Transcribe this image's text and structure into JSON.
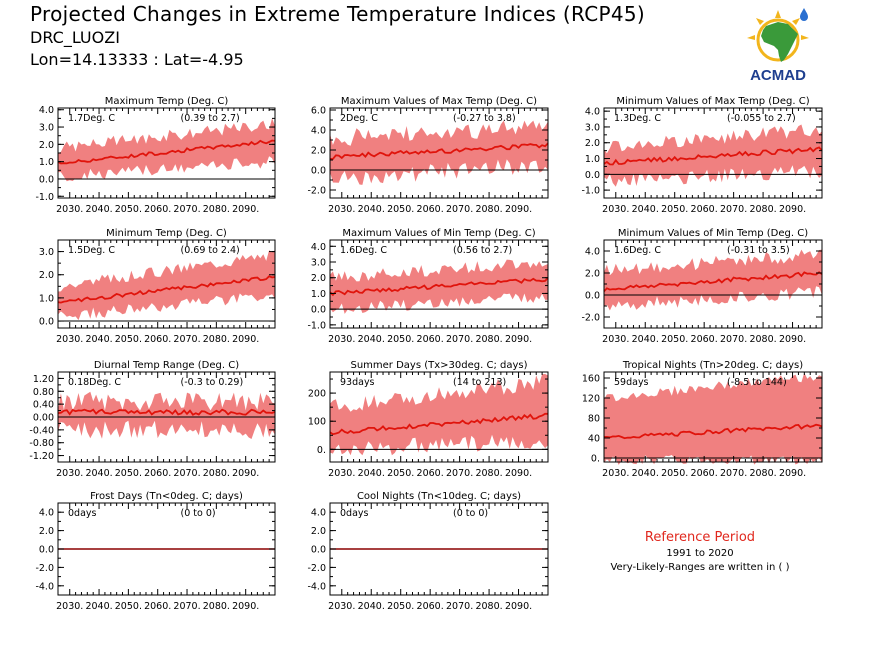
{
  "header": {
    "title": "Projected Changes in Extreme Temperature Indices (RCP45)",
    "region": "DRC_LUOZI",
    "coords": "Lon=14.13333 : Lat=-4.95"
  },
  "logo": {
    "text": "ACMAD",
    "icon": "africa-map-logo-icon",
    "colors": {
      "africa": "#3a9a3a",
      "sun": "#f2b51c",
      "text": "#1f3f8f",
      "drop": "#2a6fd0"
    }
  },
  "reference": {
    "title": "Reference Period",
    "years": "1991 to 2020",
    "note": "Very-Likely-Ranges are written in ( )"
  },
  "colors": {
    "band": "#f08080",
    "median": "#e0140c",
    "zero_line": "#000000",
    "frost_line": "#8b0000"
  },
  "chart_data": [
    {
      "id": "txmean",
      "type": "area",
      "title": "Maximum Temp (Deg. C)",
      "change": "1.7Deg. C",
      "range": "(0.39 to 2.7)",
      "x_start": 2026,
      "x_end": 2100,
      "xticks": [
        "2030.",
        "2040.",
        "2050.",
        "2060.",
        "2070.",
        "2080.",
        "2090."
      ],
      "ylim": [
        -1.1,
        4.1
      ],
      "yticks": [
        "4.0",
        "3.0",
        "2.0",
        "1.0",
        "0.0",
        "-1.0"
      ],
      "ytick_values": [
        4,
        3,
        2,
        1,
        0,
        -1
      ],
      "median_start": 0.9,
      "median_end": 2.2,
      "low_start": 0.1,
      "low_end": 1.0,
      "high_start": 1.8,
      "high_end": 3.2,
      "noise": 0.35,
      "noise_median": 0.1
    },
    {
      "id": "txx",
      "type": "area",
      "title": "Maximum Values of Max Temp (Deg. C)",
      "change": "2Deg. C",
      "range": "(-0.27 to 3.8)",
      "x_start": 2026,
      "x_end": 2100,
      "xticks": [
        "2030.",
        "2040.",
        "2050.",
        "2060.",
        "2070.",
        "2080.",
        "2090."
      ],
      "ylim": [
        -2.8,
        6.2
      ],
      "yticks": [
        "6.0",
        "4.0",
        "2.0",
        "0.0",
        "-2.0"
      ],
      "ytick_values": [
        6,
        4,
        2,
        0,
        -2
      ],
      "median_start": 1.3,
      "median_end": 2.5,
      "low_start": -0.8,
      "low_end": 0.5,
      "high_start": 3.2,
      "high_end": 4.3,
      "noise": 0.9,
      "noise_median": 0.25
    },
    {
      "id": "txn",
      "type": "area",
      "title": "Minimum Values of Max Temp (Deg. C)",
      "change": "1.3Deg. C",
      "range": "(-0.055 to 2.7)",
      "x_start": 2026,
      "x_end": 2100,
      "xticks": [
        "2030.",
        "2040.",
        "2050.",
        "2060.",
        "2070.",
        "2080.",
        "2090."
      ],
      "ylim": [
        -1.5,
        4.2
      ],
      "yticks": [
        "4.0",
        "3.0",
        "2.0",
        "1.0",
        "0.0",
        "-1.0"
      ],
      "ytick_values": [
        4,
        3,
        2,
        1,
        0,
        -1
      ],
      "median_start": 0.7,
      "median_end": 1.6,
      "low_start": -0.4,
      "low_end": 0.2,
      "high_start": 1.7,
      "high_end": 2.9,
      "noise": 0.45,
      "noise_median": 0.15
    },
    {
      "id": "tnmean",
      "type": "area",
      "title": "Minimum Temp (Deg. C)",
      "change": "1.5Deg. C",
      "range": "(0.69 to 2.4)",
      "x_start": 2026,
      "x_end": 2100,
      "xticks": [
        "2030.",
        "2040.",
        "2050.",
        "2060.",
        "2070.",
        "2080.",
        "2090."
      ],
      "ylim": [
        -0.3,
        3.5
      ],
      "yticks": [
        "3.0",
        "2.0",
        "1.0",
        "0.0"
      ],
      "ytick_values": [
        3,
        2,
        1,
        0
      ],
      "median_start": 0.8,
      "median_end": 1.9,
      "low_start": 0.2,
      "low_end": 1.1,
      "high_start": 1.5,
      "high_end": 2.9,
      "noise": 0.25,
      "noise_median": 0.08
    },
    {
      "id": "tnx",
      "type": "area",
      "title": "Maximum Values of Min Temp (Deg. C)",
      "change": "1.6Deg. C",
      "range": "(0.56 to 2.7)",
      "x_start": 2026,
      "x_end": 2100,
      "xticks": [
        "2030.",
        "2040.",
        "2050.",
        "2060.",
        "2070.",
        "2080.",
        "2090."
      ],
      "ylim": [
        -1.2,
        4.4
      ],
      "yticks": [
        "4.0",
        "3.0",
        "2.0",
        "1.0",
        "0.0",
        "-1.0"
      ],
      "ytick_values": [
        4,
        3,
        2,
        1,
        0,
        -1
      ],
      "median_start": 1.0,
      "median_end": 1.9,
      "low_start": 0.0,
      "low_end": 0.8,
      "high_start": 2.0,
      "high_end": 3.0,
      "noise": 0.4,
      "noise_median": 0.12
    },
    {
      "id": "tnn",
      "type": "area",
      "title": "Minimum Values of Min Temp (Deg. C)",
      "change": "1.6Deg. C",
      "range": "(-0.31 to 3.5)",
      "x_start": 2026,
      "x_end": 2100,
      "xticks": [
        "2030.",
        "2040.",
        "2050.",
        "2060.",
        "2070.",
        "2080.",
        "2090."
      ],
      "ylim": [
        -3.0,
        5.0
      ],
      "yticks": [
        "4.0",
        "2.0",
        "0.0",
        "-2.0"
      ],
      "ytick_values": [
        4,
        2,
        0,
        -2
      ],
      "median_start": 0.5,
      "median_end": 2.0,
      "low_start": -1.0,
      "low_end": 0.3,
      "high_start": 2.2,
      "high_end": 3.7,
      "noise": 0.6,
      "noise_median": 0.2
    },
    {
      "id": "dtr",
      "type": "area",
      "title": "Diurnal Temp Range (Deg. C)",
      "change": "0.18Deg. C",
      "range": "(-0.3 to 0.29)",
      "x_start": 2026,
      "x_end": 2100,
      "xticks": [
        "2030.",
        "2040.",
        "2050.",
        "2060.",
        "2070.",
        "2080.",
        "2090."
      ],
      "ylim": [
        -1.4,
        1.4
      ],
      "yticks": [
        "1.20",
        "0.80",
        "0.40",
        "0.00",
        "-0.40",
        "-0.80",
        "-1.20"
      ],
      "ytick_values": [
        1.2,
        0.8,
        0.4,
        0,
        -0.4,
        -0.8,
        -1.2
      ],
      "median_start": 0.15,
      "median_end": 0.15,
      "low_start": -0.4,
      "low_end": -0.4,
      "high_start": 0.5,
      "high_end": 0.5,
      "noise": 0.3,
      "noise_median": 0.08
    },
    {
      "id": "su",
      "type": "area",
      "title": "Summer Days (Tx>30deg. C; days)",
      "change": "93days",
      "range": "(14 to 213)",
      "x_start": 2026,
      "x_end": 2100,
      "xticks": [
        "2030.",
        "2040.",
        "2050.",
        "2060.",
        "2070.",
        "2080.",
        "2090."
      ],
      "ylim": [
        -45,
        275
      ],
      "yticks": [
        "200",
        "100",
        "0."
      ],
      "ytick_values": [
        200,
        100,
        0
      ],
      "median_start": 60,
      "median_end": 120,
      "low_start": 0,
      "low_end": 30,
      "high_start": 150,
      "high_end": 240,
      "noise": 30,
      "noise_median": 8
    },
    {
      "id": "tr",
      "type": "area",
      "title": "Tropical Nights (Tn>20deg. C; days)",
      "change": "59days",
      "range": "(-8.5 to 144)",
      "x_start": 2026,
      "x_end": 2100,
      "xticks": [
        "2030.",
        "2040.",
        "2050.",
        "2060.",
        "2070.",
        "2080.",
        "2090."
      ],
      "ylim": [
        -8,
        172
      ],
      "yticks": [
        "160",
        "120",
        "80",
        "40",
        "0."
      ],
      "ytick_values": [
        160,
        120,
        80,
        40,
        0
      ],
      "median_start": 40,
      "median_end": 65,
      "low_start": -4,
      "low_end": -4,
      "high_start": 120,
      "high_end": 165,
      "noise": 10,
      "noise_median": 4
    },
    {
      "id": "fd",
      "type": "area",
      "title": "Frost Days (Tn<0deg. C; days)",
      "change": "0days",
      "range": "(0 to 0)",
      "x_start": 2026,
      "x_end": 2100,
      "xticks": [
        "2030.",
        "2040.",
        "2050.",
        "2060.",
        "2070.",
        "2080.",
        "2090."
      ],
      "ylim": [
        -5,
        5
      ],
      "yticks": [
        "4.0",
        "2.0",
        "0.0",
        "-2.0",
        "-4.0"
      ],
      "ytick_values": [
        4,
        2,
        0,
        -2,
        -4
      ],
      "flat": true,
      "median_start": 0,
      "median_end": 0,
      "low_start": 0,
      "low_end": 0,
      "high_start": 0,
      "high_end": 0,
      "noise": 0,
      "noise_median": 0
    },
    {
      "id": "cn",
      "type": "area",
      "title": "Cool Nights (Tn<10deg. C; days)",
      "change": "0days",
      "range": "(0 to 0)",
      "x_start": 2026,
      "x_end": 2100,
      "xticks": [
        "2030.",
        "2040.",
        "2050.",
        "2060.",
        "2070.",
        "2080.",
        "2090."
      ],
      "ylim": [
        -5,
        5
      ],
      "yticks": [
        "4.0",
        "2.0",
        "0.0",
        "-2.0",
        "-4.0"
      ],
      "ytick_values": [
        4,
        2,
        0,
        -2,
        -4
      ],
      "flat": true,
      "median_start": 0,
      "median_end": 0,
      "low_start": 0,
      "low_end": 0,
      "high_start": 0,
      "high_end": 0,
      "noise": 0,
      "noise_median": 0
    }
  ]
}
